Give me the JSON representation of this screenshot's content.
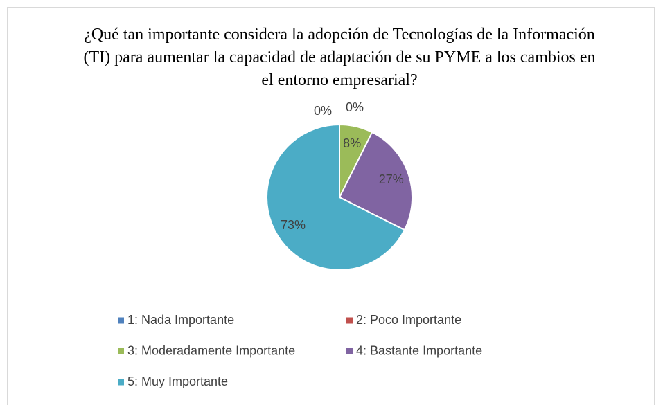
{
  "chart_data": {
    "type": "pie",
    "title": "¿Qué tan importante considera la adopción de Tecnologías de la Información (TI) para aumentar la capacidad de adaptación de su PYME a los cambios en el entorno empresarial?",
    "categories": [
      "1: Nada Importante",
      "2: Poco Importante",
      "3: Moderadamente Importante",
      "4: Bastante Importante",
      "5: Muy Importante"
    ],
    "values": [
      0,
      0,
      8,
      27,
      73
    ],
    "value_labels": [
      "0%",
      "0%",
      "8%",
      "27%",
      "73%"
    ],
    "colors": [
      "#4f81bd",
      "#c0504d",
      "#9bbb59",
      "#8064a2",
      "#4bacc6"
    ],
    "legend": "bottom"
  }
}
